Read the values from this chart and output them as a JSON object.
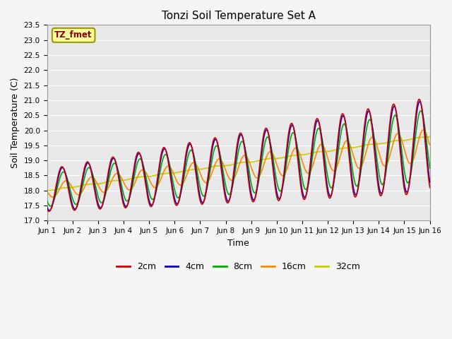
{
  "title": "Tonzi Soil Temperature Set A",
  "xlabel": "Time",
  "ylabel": "Soil Temperature (C)",
  "ylim": [
    17.0,
    23.5
  ],
  "xlim": [
    0,
    15
  ],
  "xtick_labels": [
    "Jun 1",
    "Jun 2",
    "Jun 3",
    "Jun 4",
    "Jun 5",
    "Jun 6",
    "Jun 7",
    "Jun 8",
    "Jun 9",
    "Jun 10",
    "Jun 11",
    "Jun 12",
    "Jun 13",
    "Jun 14",
    "Jun 15",
    "Jun 16"
  ],
  "xtick_positions": [
    0,
    1,
    2,
    3,
    4,
    5,
    6,
    7,
    8,
    9,
    10,
    11,
    12,
    13,
    14,
    15
  ],
  "ytick_positions": [
    17.0,
    17.5,
    18.0,
    18.5,
    19.0,
    19.5,
    20.0,
    20.5,
    21.0,
    21.5,
    22.0,
    22.5,
    23.0,
    23.5
  ],
  "annotation_text": "TZ_fmet",
  "background_color": "#e8e8e8",
  "grid_color": "#ffffff",
  "fig_bg_color": "#f5f5f5",
  "legend": [
    "2cm",
    "4cm",
    "8cm",
    "16cm",
    "32cm"
  ],
  "line_colors": [
    "#cc0000",
    "#0000cc",
    "#00aa00",
    "#ff8800",
    "#cccc00"
  ],
  "line_widths": [
    1.2,
    1.2,
    1.2,
    1.2,
    1.2
  ]
}
